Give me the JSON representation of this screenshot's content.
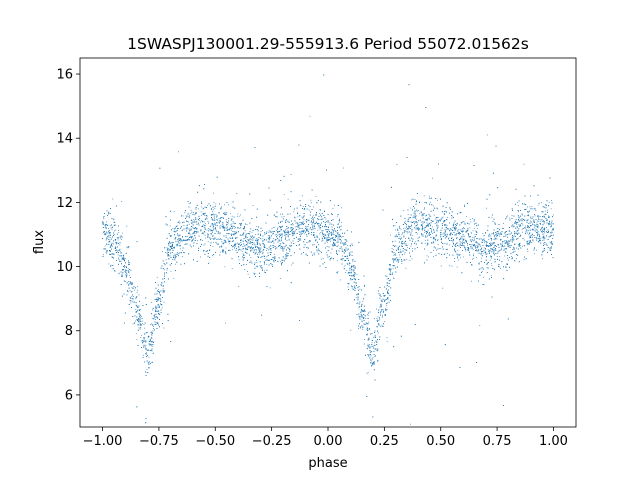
{
  "chart_data": {
    "type": "scatter",
    "title": "1SWASPJ130001.29-555913.6 Period 55072.01562s",
    "xlabel": "phase",
    "ylabel": "flux",
    "xlim": [
      -1.1,
      1.1
    ],
    "ylim": [
      5.0,
      16.5
    ],
    "xticks": [
      -1.0,
      -0.75,
      -0.5,
      -0.25,
      0.0,
      0.25,
      0.5,
      0.75,
      1.0
    ],
    "xtick_labels": [
      "−1.00",
      "−0.75",
      "−0.50",
      "−0.25",
      "0.00",
      "0.25",
      "0.50",
      "0.75",
      "1.00"
    ],
    "yticks": [
      6,
      8,
      10,
      12,
      14,
      16
    ],
    "ytick_labels": [
      "6",
      "8",
      "10",
      "12",
      "14",
      "16"
    ],
    "grid": false,
    "marker_color": "#1f77b4",
    "series": [
      {
        "phase_curve": [
          {
            "x": -1.0,
            "y": 11.1
          },
          {
            "x": -0.95,
            "y": 10.8
          },
          {
            "x": -0.9,
            "y": 10.0
          },
          {
            "x": -0.85,
            "y": 8.6
          },
          {
            "x": -0.8,
            "y": 7.3
          },
          {
            "x": -0.75,
            "y": 8.9
          },
          {
            "x": -0.7,
            "y": 10.6
          },
          {
            "x": -0.6,
            "y": 11.3
          },
          {
            "x": -0.5,
            "y": 11.2
          },
          {
            "x": -0.4,
            "y": 10.9
          },
          {
            "x": -0.3,
            "y": 10.5
          },
          {
            "x": -0.2,
            "y": 10.9
          },
          {
            "x": -0.1,
            "y": 11.2
          },
          {
            "x": 0.0,
            "y": 11.1
          },
          {
            "x": 0.05,
            "y": 10.8
          },
          {
            "x": 0.1,
            "y": 10.0
          },
          {
            "x": 0.15,
            "y": 8.6
          },
          {
            "x": 0.2,
            "y": 7.3
          },
          {
            "x": 0.25,
            "y": 8.9
          },
          {
            "x": 0.3,
            "y": 10.6
          },
          {
            "x": 0.4,
            "y": 11.3
          },
          {
            "x": 0.5,
            "y": 11.2
          },
          {
            "x": 0.6,
            "y": 10.9
          },
          {
            "x": 0.7,
            "y": 10.5
          },
          {
            "x": 0.8,
            "y": 10.9
          },
          {
            "x": 0.9,
            "y": 11.2
          },
          {
            "x": 1.0,
            "y": 11.1
          }
        ],
        "scatter_sigma": 0.4,
        "num_points": 9000
      }
    ]
  }
}
